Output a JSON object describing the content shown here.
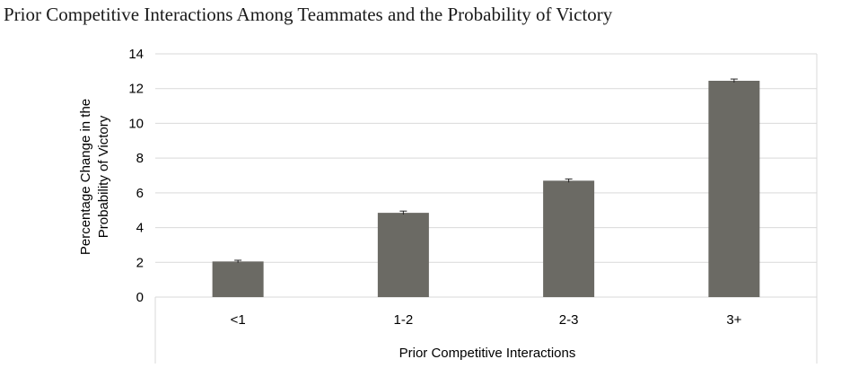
{
  "chart_data": {
    "type": "bar",
    "title": "Prior Competitive Interactions Among Teammates and the Probability of Victory",
    "xlabel": "Prior Competitive Interactions",
    "ylabel_lines": [
      "Percentage Change in the",
      "Probability of Victory"
    ],
    "categories": [
      "<1",
      "1-2",
      "2-3",
      "3+"
    ],
    "values": [
      2.05,
      4.85,
      6.7,
      12.45
    ],
    "errors": [
      0.07,
      0.1,
      0.1,
      0.1
    ],
    "ylim": [
      0,
      14
    ],
    "yticks": [
      0,
      2,
      4,
      6,
      8,
      10,
      12,
      14
    ],
    "grid": true,
    "bar_color": "#6b6a64"
  }
}
